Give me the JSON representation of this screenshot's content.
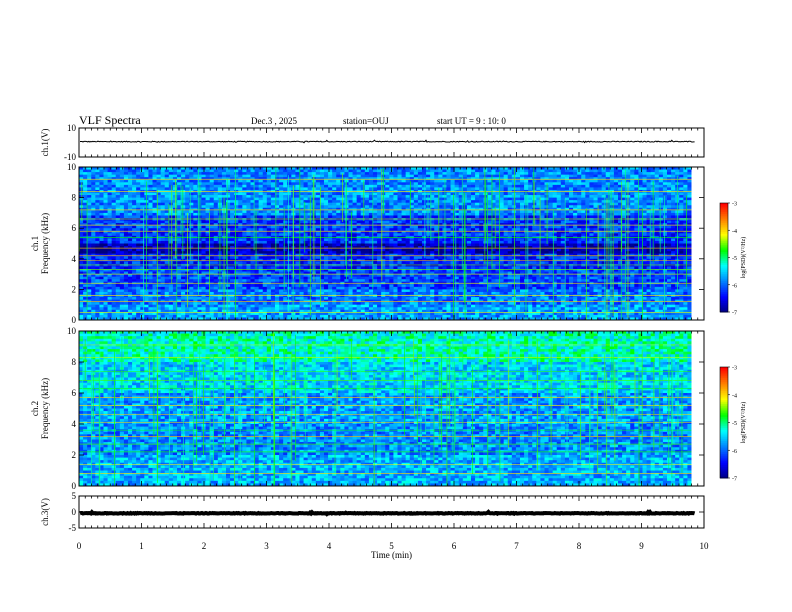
{
  "header": {
    "title": "VLF Spectra",
    "date": "Dec.3 , 2025",
    "station": "station=OUJ",
    "start_ut": "start UT = 9 : 10: 0"
  },
  "colors": {
    "waveform": "#000000",
    "colormap": [
      "#00007f",
      "#0000ff",
      "#0080ff",
      "#00ffff",
      "#00ff00",
      "#ffff00",
      "#ff8000",
      "#ff0000"
    ]
  },
  "chart_data": [
    {
      "type": "line",
      "id": "ch1-waveform",
      "ylabel": "ch.1(V)",
      "ylim": [
        -10,
        10
      ],
      "yticks": [
        "10",
        "-10"
      ],
      "baseline_value": 0.6,
      "noise_amplitude": 0.3,
      "xlim": [
        0,
        10
      ]
    },
    {
      "type": "heatmap",
      "id": "ch1-spectrogram",
      "ylabel": [
        "ch.1",
        "Frequency (kHz)"
      ],
      "ylim": [
        0,
        10
      ],
      "yticks": [
        "0",
        "2",
        "4",
        "6",
        "8",
        "10"
      ],
      "xlim": [
        0,
        10
      ],
      "data_end_min": 9.8,
      "colorbar": {
        "label": "log(PSD)(V²/Hz)",
        "ticks": [
          "-3",
          "-4",
          "-5",
          "-6",
          "-7"
        ],
        "range": [
          -7,
          -3
        ]
      },
      "bands": [
        {
          "from_khz": 0.0,
          "to_khz": 1.0,
          "level": 0.32
        },
        {
          "from_khz": 1.0,
          "to_khz": 2.0,
          "level": 0.28
        },
        {
          "from_khz": 2.0,
          "to_khz": 3.4,
          "level": 0.22
        },
        {
          "from_khz": 3.4,
          "to_khz": 4.4,
          "level": 0.18
        },
        {
          "from_khz": 4.4,
          "to_khz": 5.0,
          "level": 0.06
        },
        {
          "from_khz": 5.0,
          "to_khz": 6.8,
          "level": 0.2
        },
        {
          "from_khz": 6.8,
          "to_khz": 10.0,
          "level": 0.3
        }
      ],
      "lines_khz": [
        0.5,
        1.2,
        1.6,
        2.4,
        3.0,
        3.3,
        3.6,
        3.9,
        4.2,
        4.7,
        5.4,
        5.8,
        6.2,
        6.6,
        7.2,
        8.4,
        9.2
      ]
    },
    {
      "type": "heatmap",
      "id": "ch2-spectrogram",
      "ylabel": [
        "ch.2",
        "Frequency (kHz)"
      ],
      "ylim": [
        0,
        10
      ],
      "yticks": [
        "0",
        "2",
        "4",
        "6",
        "8",
        "10"
      ],
      "xlim": [
        0,
        10
      ],
      "data_end_min": 9.8,
      "colorbar": {
        "label": "log(PSD)(V²/Hz)",
        "ticks": [
          "-3",
          "-4",
          "-5",
          "-6",
          "-7"
        ],
        "range": [
          -7,
          -3
        ]
      },
      "bands": [
        {
          "from_khz": 0.0,
          "to_khz": 2.0,
          "level": 0.34
        },
        {
          "from_khz": 2.0,
          "to_khz": 4.0,
          "level": 0.3
        },
        {
          "from_khz": 4.0,
          "to_khz": 6.0,
          "level": 0.32
        },
        {
          "from_khz": 6.0,
          "to_khz": 8.0,
          "level": 0.38
        },
        {
          "from_khz": 8.0,
          "to_khz": 10.0,
          "level": 0.46
        }
      ],
      "lines_khz": [
        0.8,
        1.4,
        2.2,
        2.7,
        3.2,
        3.6,
        4.1,
        4.6,
        5.2,
        5.7,
        6.3,
        6.8,
        7.4,
        8.3,
        9.1
      ]
    },
    {
      "type": "line",
      "id": "ch3-waveform",
      "ylabel": "ch.3(V)",
      "ylim": [
        -5,
        5
      ],
      "yticks": [
        "5",
        "0",
        "-5"
      ],
      "baseline_value": -0.4,
      "noise_amplitude": 0.1,
      "xlim": [
        0,
        10
      ]
    }
  ],
  "x_axis": {
    "label": "Time (min)",
    "ticks": [
      "0",
      "1",
      "2",
      "3",
      "4",
      "5",
      "6",
      "7",
      "8",
      "9",
      "10"
    ]
  }
}
